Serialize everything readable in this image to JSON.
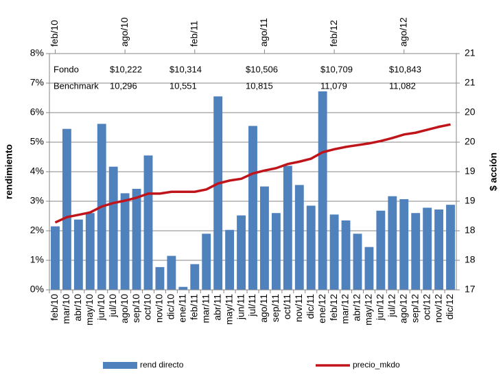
{
  "chart_data": {
    "type": "bar_line",
    "categories": [
      "feb/10",
      "mar/10",
      "abr/10",
      "may/10",
      "jun/10",
      "jul/10",
      "ago/10",
      "sep/10",
      "oct/10",
      "nov/10",
      "dic/10",
      "ene/11",
      "feb/11",
      "mar/11",
      "abr/11",
      "may/11",
      "jun/11",
      "jul/11",
      "ago/11",
      "sep/11",
      "oct/11",
      "nov/11",
      "dic/11",
      "ene/12",
      "feb/12",
      "mar/12",
      "abr/12",
      "may/12",
      "jun/12",
      "jul/12",
      "ago/12",
      "sep/12",
      "oct/12",
      "nov/12",
      "dic/12"
    ],
    "top_categories": [
      "feb/10",
      "ago/10",
      "feb/11",
      "ago/11",
      "feb/12",
      "ago/12"
    ],
    "series": [
      {
        "name": "rend directo",
        "type": "bar",
        "color": "#4f81bd",
        "values": [
          2.15,
          5.45,
          2.38,
          2.6,
          5.62,
          4.17,
          3.27,
          3.42,
          4.55,
          0.77,
          1.15,
          0.1,
          0.87,
          1.9,
          6.55,
          2.03,
          2.52,
          5.55,
          3.5,
          2.6,
          4.2,
          3.55,
          2.85,
          6.72,
          2.55,
          2.35,
          1.9,
          1.45,
          2.68,
          3.17,
          3.07,
          2.6,
          2.78,
          2.72,
          2.88
        ]
      },
      {
        "name": "precio_mkdo",
        "type": "line",
        "axis": "y2",
        "color": "#c0141b",
        "values": [
          18.14,
          18.23,
          18.27,
          18.31,
          18.41,
          18.47,
          18.51,
          18.56,
          18.63,
          18.63,
          18.66,
          18.66,
          18.66,
          18.7,
          18.8,
          18.85,
          18.88,
          18.97,
          19.02,
          19.06,
          19.13,
          19.17,
          19.22,
          19.33,
          19.38,
          19.42,
          19.45,
          19.48,
          19.52,
          19.57,
          19.63,
          19.66,
          19.71,
          19.76,
          19.8
        ]
      }
    ],
    "ylabel": "rendimiento",
    "y2label": "$ acción",
    "ylim": [
      0,
      8
    ],
    "yticks": [
      {
        "value": 0,
        "label": "0%"
      },
      {
        "value": 1,
        "label": "1%"
      },
      {
        "value": 2,
        "label": "2%"
      },
      {
        "value": 3,
        "label": "3%"
      },
      {
        "value": 4,
        "label": "4%"
      },
      {
        "value": 5,
        "label": "5%"
      },
      {
        "value": 6,
        "label": "6%"
      },
      {
        "value": 7,
        "label": "7%"
      },
      {
        "value": 8,
        "label": "8%"
      }
    ],
    "y2lim": [
      17,
      21
    ],
    "y2ticks": [
      17,
      {
        "value": 17.5,
        "label": "18"
      },
      18,
      {
        "value": 18.5,
        "label": "19"
      },
      19,
      {
        "value": 19.5,
        "label": "20"
      },
      20,
      {
        "value": 20.5,
        "label": "21"
      },
      21
    ],
    "grid": true,
    "annotations": [
      {
        "label": "Fondo",
        "values": [
          "$10,222",
          "$10,314",
          "$10,506",
          "$10,709",
          "$10,843"
        ]
      },
      {
        "label": "Benchmark",
        "values": [
          "10,296",
          "10,551",
          "10,815",
          "11,079",
          "11,082"
        ]
      }
    ]
  }
}
